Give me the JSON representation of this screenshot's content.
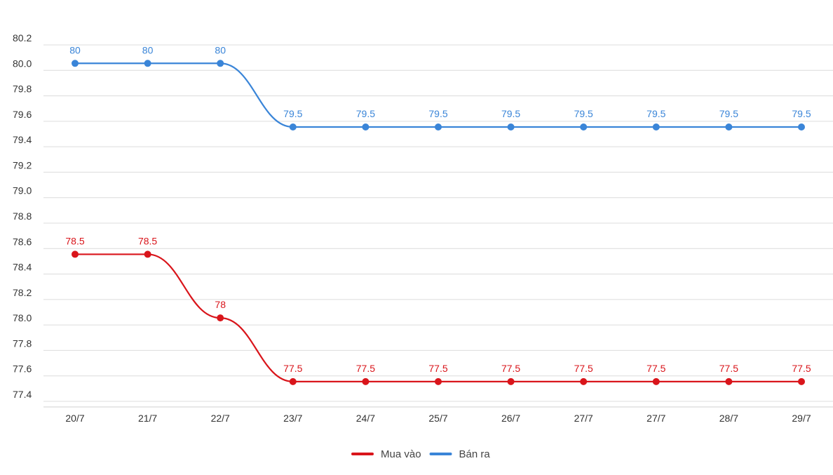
{
  "chart_data": {
    "type": "line",
    "title": "",
    "xlabel": "",
    "ylabel": "",
    "categories": [
      "20/7",
      "21/7",
      "22/7",
      "23/7",
      "24/7",
      "25/7",
      "26/7",
      "27/7",
      "27/7",
      "28/7",
      "29/7"
    ],
    "ylim": [
      77.4,
      80.2
    ],
    "yticks": [
      "80.2",
      "80.0",
      "79.8",
      "79.6",
      "79.4",
      "79.2",
      "79.0",
      "78.8",
      "78.6",
      "78.4",
      "78.2",
      "78.0",
      "77.8",
      "77.6",
      "77.4"
    ],
    "grid": "horizontal",
    "legend_position": "bottom-center",
    "series": [
      {
        "name": "Mua vào",
        "color": "#d9151b",
        "values": [
          78.5,
          78.5,
          78,
          77.5,
          77.5,
          77.5,
          77.5,
          77.5,
          77.5,
          77.5,
          77.5
        ],
        "labels": [
          "78.5",
          "78.5",
          "78",
          "77.5",
          "77.5",
          "77.5",
          "77.5",
          "77.5",
          "77.5",
          "77.5",
          "77.5"
        ]
      },
      {
        "name": "Bán ra",
        "color": "#3a85d8",
        "values": [
          80,
          80,
          80,
          79.5,
          79.5,
          79.5,
          79.5,
          79.5,
          79.5,
          79.5,
          79.5
        ],
        "labels": [
          "80",
          "80",
          "80",
          "79.5",
          "79.5",
          "79.5",
          "79.5",
          "79.5",
          "79.5",
          "79.5",
          "79.5"
        ]
      }
    ]
  }
}
